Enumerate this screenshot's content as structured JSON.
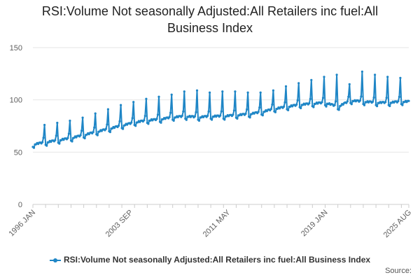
{
  "title": "RSI:Volume Not seasonally Adjusted:All Retailers inc fuel:All Business Index",
  "source_label": "Source:",
  "legend_label": "RSI:Volume Not seasonally Adjusted:All Retailers inc fuel:All Business Index",
  "colors": {
    "series": "#1f86c6",
    "grid": "#e6e6e6",
    "axis": "#cccccc"
  },
  "chart_data": {
    "type": "line",
    "title": "RSI:Volume Not seasonally Adjusted:All Retailers inc fuel:All Business Index",
    "frequency": "monthly",
    "x_start": "1996-01",
    "x_end": "2025-08",
    "x_tick_labels": [
      "1996 JAN",
      "2003 SEP",
      "2011 MAY",
      "2019 JAN",
      "2025 AUG"
    ],
    "y_ticks": [
      0,
      50,
      100,
      150
    ],
    "ylim": [
      0,
      150
    ],
    "grid": "horizontal",
    "legend_position": "bottom",
    "series": [
      {
        "name": "RSI:Volume Not seasonally Adjusted:All Retailers inc fuel:All Business Index",
        "color": "#1f86c6",
        "december_peaks": {
          "years": [
            1996,
            1997,
            1998,
            1999,
            2000,
            2001,
            2002,
            2003,
            2004,
            2005,
            2006,
            2007,
            2008,
            2009,
            2010,
            2011,
            2012,
            2013,
            2014,
            2015,
            2016,
            2017,
            2018,
            2019,
            2020,
            2021,
            2022,
            2023,
            2024
          ],
          "values": [
            76,
            78,
            80,
            83,
            87,
            91,
            95,
            98,
            101,
            103,
            105,
            108,
            109,
            107,
            108,
            108,
            107,
            107,
            109,
            113,
            116,
            119,
            122,
            124,
            115,
            127,
            124,
            122,
            121
          ]
        },
        "annual_base_levels": {
          "years": [
            1996,
            1997,
            1998,
            1999,
            2000,
            2001,
            2002,
            2003,
            2004,
            2005,
            2006,
            2007,
            2008,
            2009,
            2010,
            2011,
            2012,
            2013,
            2014,
            2015,
            2016,
            2017,
            2018,
            2019,
            2020,
            2021,
            2022,
            2023,
            2024,
            2025
          ],
          "values": [
            57,
            59,
            61,
            63,
            66,
            69,
            72,
            75,
            78,
            80,
            81,
            83,
            84,
            83,
            84,
            84,
            85,
            86,
            88,
            91,
            93,
            95,
            96,
            97,
            93,
            99,
            98,
            97,
            97,
            98
          ]
        }
      }
    ]
  }
}
